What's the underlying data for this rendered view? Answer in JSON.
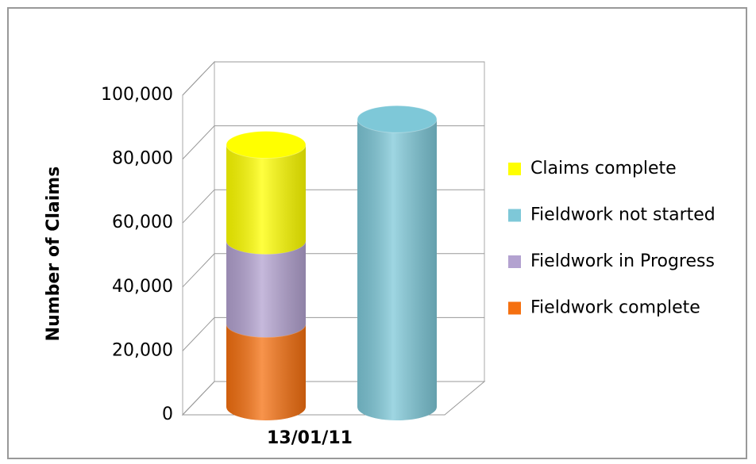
{
  "chart_data": {
    "type": "bar3d_stacked",
    "y_label": "Number of Claims",
    "categories": [
      "13/01/11"
    ],
    "series": [
      {
        "name": "Claims complete",
        "color": "#ffff00",
        "stack": 0,
        "values": [
          30000
        ]
      },
      {
        "name": "Fieldwork not started",
        "color": "#7ec8d8",
        "stack": 1,
        "values": [
          90000
        ]
      },
      {
        "name": "Fieldwork in Progress",
        "color": "#b3a2d0",
        "stack": 0,
        "values": [
          26000
        ]
      },
      {
        "name": "Fieldwork complete",
        "color": "#f57010",
        "stack": 0,
        "values": [
          26000
        ]
      }
    ],
    "stack_order": [
      3,
      2,
      0
    ],
    "ylim": [
      0,
      100000
    ],
    "yticks": [
      0,
      {
        "value": 20000,
        "label": "20,000"
      },
      {
        "value": 40000,
        "label": "40,000"
      },
      {
        "value": 60000,
        "label": "60,000"
      },
      {
        "value": 80000,
        "label": "80,000"
      },
      {
        "value": 100000,
        "label": "100,000"
      }
    ],
    "grid": true,
    "legend": "right"
  }
}
